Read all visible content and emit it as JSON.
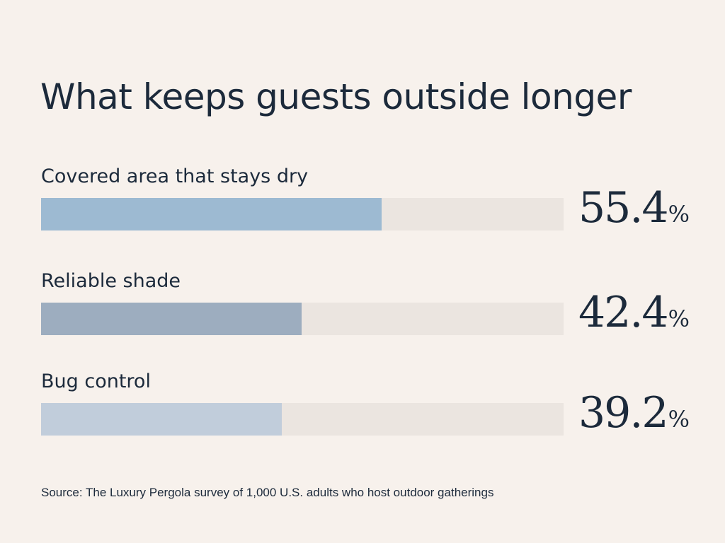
{
  "chart_data": {
    "type": "bar",
    "orientation": "horizontal",
    "title": "What keeps guests outside longer",
    "categories": [
      "Covered area that stays dry",
      "Reliable shade",
      "Bug control"
    ],
    "values": [
      55.4,
      42.4,
      39.2
    ],
    "value_labels": [
      "55.4",
      "42.4",
      "39.2"
    ],
    "unit": "%",
    "xlim": [
      0,
      85
    ],
    "colors": [
      "#9dbad2",
      "#9dadbf",
      "#c1cddb"
    ],
    "track_color": "#ebe5e0",
    "grid": false,
    "source": "Source: The Luxury Pergola survey of 1,000 U.S. adults who host outdoor gatherings"
  }
}
